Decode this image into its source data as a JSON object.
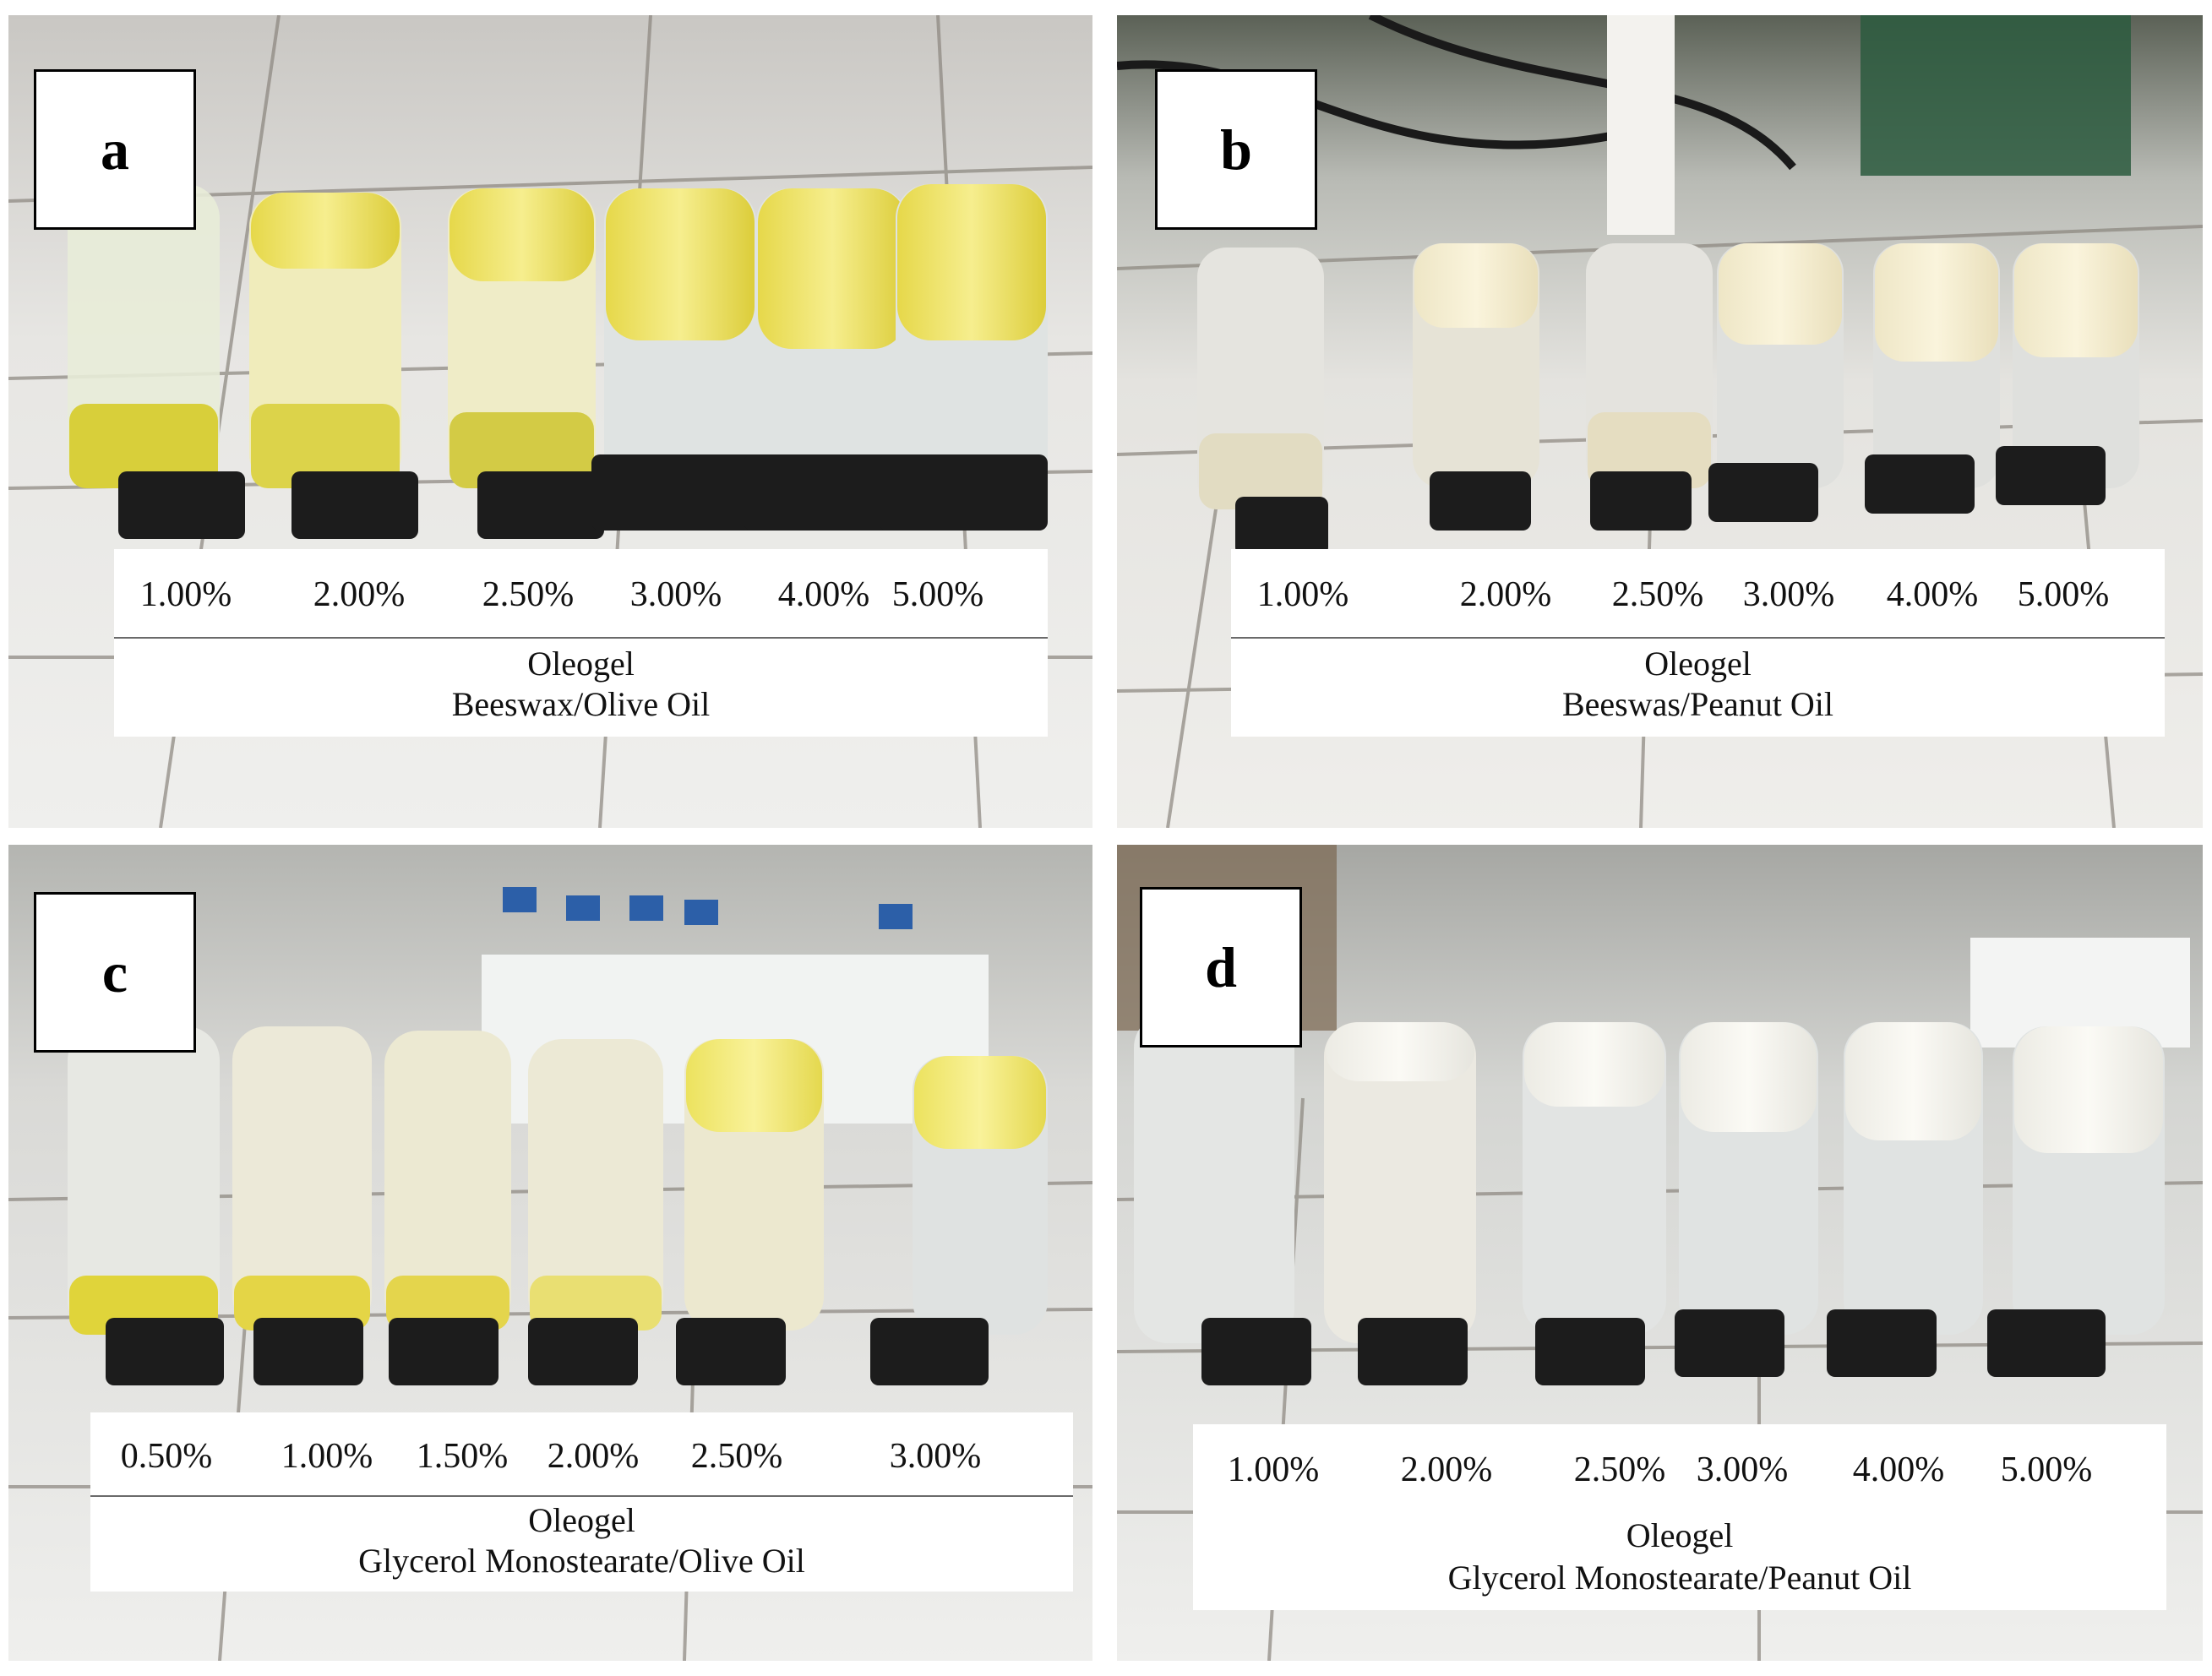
{
  "panels": [
    {
      "letter": "a",
      "percentages": [
        "1.00%",
        "2.00%",
        "2.50%",
        "3.00%",
        "4.00%",
        "5.00%"
      ],
      "caption_line1": "Oleogel",
      "caption_line2": "Beeswax/Olive Oil"
    },
    {
      "letter": "b",
      "percentages": [
        "1.00%",
        "2.00%",
        "2.50%",
        "3.00%",
        "4.00%",
        "5.00%"
      ],
      "caption_line1": "Oleogel",
      "caption_line2": "Beeswas/Peanut Oil"
    },
    {
      "letter": "c",
      "percentages": [
        "0.50%",
        "1.00%",
        "1.50%",
        "2.00%",
        "2.50%",
        "3.00%"
      ],
      "caption_line1": "Oleogel",
      "caption_line2": "Glycerol Monostearate/Olive Oil"
    },
    {
      "letter": "d",
      "percentages": [
        "1.00%",
        "2.00%",
        "2.50%",
        "3.00%",
        "4.00%",
        "5.00%"
      ],
      "caption_line1": "Oleogel",
      "caption_line2": "Glycerol Monostearate/Peanut Oil"
    }
  ]
}
